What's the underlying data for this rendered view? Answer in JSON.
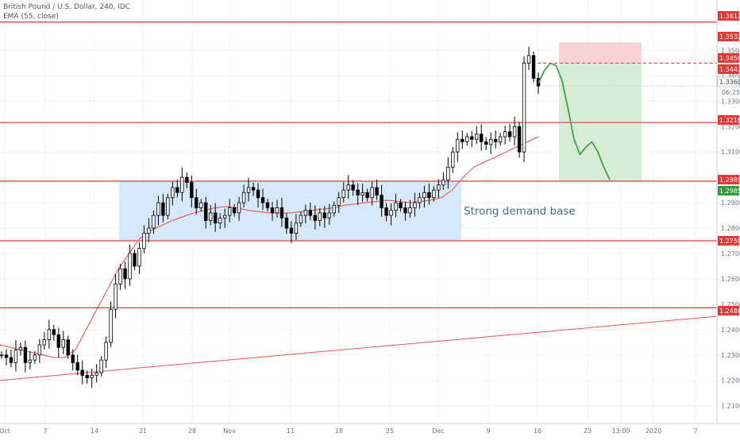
{
  "symbol": {
    "title": "British Pound / U.S. Dollar, 240, IDC",
    "indicator": "EMA (55, close)"
  },
  "annotation": "Strong demand base",
  "countdown": "06:25",
  "colors": {
    "level_line": "#e53935",
    "ema": "#ef5350",
    "trendline": "#ef5350",
    "demand_zone": "#d6e9fa",
    "stop_zone": "#f8d3d3",
    "target_zone": "#d7ecd4",
    "projection": "#43a047",
    "candle": "#000000",
    "current_price": "#26a69a"
  },
  "chart_data": {
    "type": "candlestick",
    "title": "British Pound / U.S. Dollar, 240, IDC",
    "x_tick_labels": [
      "Oct",
      "7",
      "14",
      "21",
      "28",
      "Nov",
      "11",
      "18",
      "25",
      "Dec",
      "9",
      "16",
      "23",
      "13:00",
      "2020",
      "7"
    ],
    "y_tick_labels": [
      "1.3500",
      "1.3400",
      "1.3300",
      "1.3200",
      "1.3100",
      "1.3000",
      "1.2900",
      "1.2800",
      "1.2700",
      "1.2600",
      "1.2500",
      "1.2400",
      "1.2300",
      "1.2200",
      "1.2100"
    ],
    "ylim": [
      1.203,
      1.368
    ],
    "grid": true,
    "horizontal_levels": [
      1.3612,
      1.3216,
      1.2985,
      1.275,
      1.2486
    ],
    "price_labels": [
      {
        "value": "1.3612",
        "style": "level"
      },
      {
        "value": "1.3532",
        "style": "level"
      },
      {
        "value": "1.3450",
        "style": "level"
      },
      {
        "value": "1.3443",
        "style": "level"
      },
      {
        "value": "1.3360",
        "style": "current"
      },
      {
        "value": "1.3216",
        "style": "level"
      },
      {
        "value": "1.2985",
        "style": "level"
      },
      {
        "value": "1.2985",
        "style": "green"
      },
      {
        "value": "1.2750",
        "style": "level"
      },
      {
        "value": "1.2486",
        "style": "level"
      }
    ],
    "candles_close": [
      1.23,
      1.229,
      1.227,
      1.232,
      1.233,
      1.227,
      1.228,
      1.23,
      1.234,
      1.236,
      1.24,
      1.238,
      1.233,
      1.236,
      1.23,
      1.227,
      1.224,
      1.222,
      1.221,
      1.222,
      1.223,
      1.228,
      1.235,
      1.248,
      1.258,
      1.264,
      1.26,
      1.27,
      1.265,
      1.272,
      1.278,
      1.28,
      1.285,
      1.29,
      1.285,
      1.292,
      1.296,
      1.294,
      1.3,
      1.298,
      1.292,
      1.288,
      1.29,
      1.283,
      1.286,
      1.282,
      1.284,
      1.285,
      1.288,
      1.286,
      1.29,
      1.294,
      1.296,
      1.295,
      1.292,
      1.29,
      1.288,
      1.286,
      1.288,
      1.284,
      1.28,
      1.278,
      1.282,
      1.285,
      1.287,
      1.285,
      1.283,
      1.286,
      1.284,
      1.286,
      1.289,
      1.292,
      1.295,
      1.297,
      1.295,
      1.293,
      1.294,
      1.292,
      1.296,
      1.293,
      1.288,
      1.285,
      1.287,
      1.29,
      1.288,
      1.286,
      1.288,
      1.29,
      1.292,
      1.294,
      1.292,
      1.295,
      1.297,
      1.299,
      1.304,
      1.31,
      1.315,
      1.314,
      1.316,
      1.315,
      1.317,
      1.314,
      1.313,
      1.315,
      1.314,
      1.316,
      1.318,
      1.316,
      1.32,
      1.31,
      1.345,
      1.348,
      1.339,
      1.336
    ],
    "ema_55": [
      1.234,
      1.233,
      1.232,
      1.231,
      1.23,
      1.229,
      1.229,
      1.232,
      1.24,
      1.248,
      1.256,
      1.264,
      1.27,
      1.276,
      1.279,
      1.281,
      1.283,
      1.2845,
      1.286,
      1.287,
      1.288,
      1.2885,
      1.288,
      1.287,
      1.2865,
      1.286,
      1.286,
      1.286,
      1.2865,
      1.287,
      1.2875,
      1.288,
      1.289,
      1.2895,
      1.29,
      1.2905,
      1.291,
      1.2905,
      1.29,
      1.2905,
      1.291,
      1.292,
      1.295,
      1.3,
      1.304,
      1.306,
      1.308,
      1.31,
      1.312,
      1.314,
      1.316
    ],
    "trendline": {
      "start": [
        "Oct",
        1.22
      ],
      "end": [
        "2020 +7",
        1.246
      ]
    },
    "demand_zone": {
      "from": "Oct 17",
      "to": "Dec 5",
      "low": 1.275,
      "high": 1.2985
    },
    "position": {
      "entry": 1.345,
      "stop": 1.3532,
      "target": 1.2985
    },
    "projection_path": [
      1.337,
      1.342,
      1.345,
      1.344,
      1.338,
      1.327,
      1.315,
      1.309,
      1.312,
      1.314,
      1.31,
      1.304,
      1.299
    ]
  }
}
